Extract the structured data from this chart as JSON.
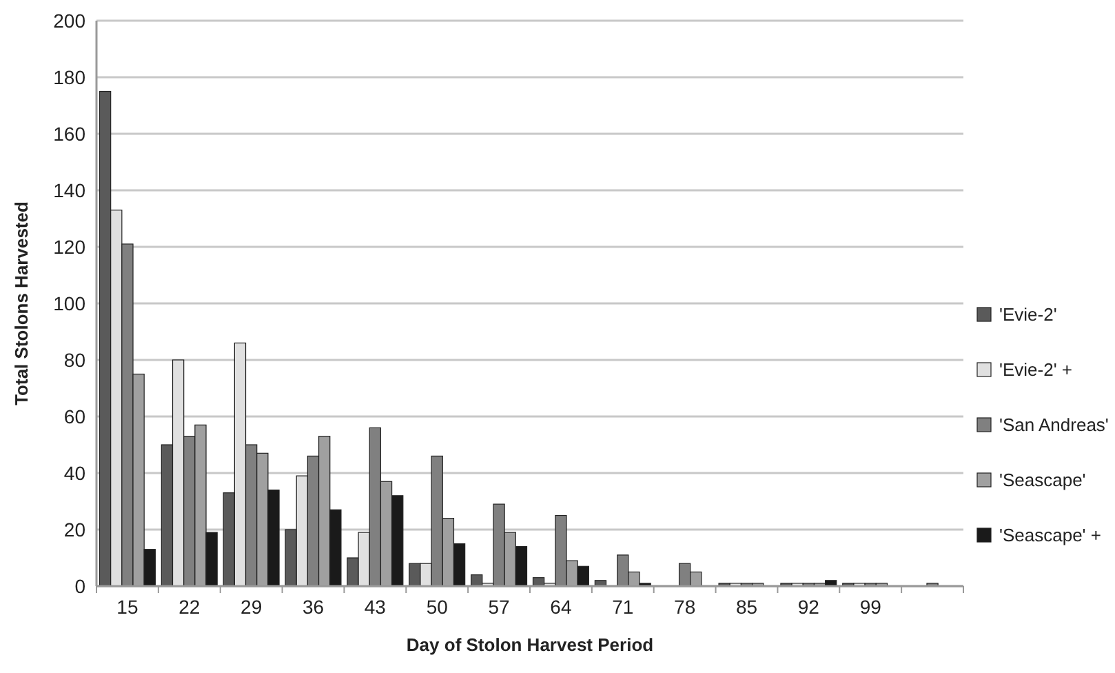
{
  "chart_data": {
    "type": "bar",
    "xlabel": "Day of Stolon Harvest Period",
    "ylabel": "Total Stolons Harvested",
    "categories": [
      "15",
      "22",
      "29",
      "36",
      "43",
      "50",
      "57",
      "64",
      "71",
      "78",
      "85",
      "92",
      "99",
      null
    ],
    "series": [
      {
        "name": "'Evie-2'",
        "color": "#5a5a5a",
        "values": [
          175,
          50,
          33,
          20,
          10,
          8,
          4,
          3,
          2,
          0,
          1,
          1,
          1,
          0
        ]
      },
      {
        "name": "'Evie-2' +",
        "color": "#e0e0e0",
        "values": [
          133,
          80,
          86,
          39,
          19,
          8,
          1,
          1,
          0,
          0,
          1,
          1,
          1,
          0
        ]
      },
      {
        "name": "'San Andreas'",
        "color": "#808080",
        "values": [
          121,
          53,
          50,
          46,
          56,
          46,
          29,
          25,
          11,
          8,
          1,
          1,
          1,
          1
        ]
      },
      {
        "name": "'Seascape'",
        "color": "#a0a0a0",
        "values": [
          75,
          57,
          47,
          53,
          37,
          24,
          19,
          9,
          5,
          5,
          1,
          1,
          1,
          0
        ]
      },
      {
        "name": "'Seascape' +",
        "color": "#1a1a1a",
        "values": [
          13,
          19,
          34,
          27,
          32,
          15,
          14,
          7,
          1,
          0,
          0,
          2,
          0,
          0
        ]
      }
    ],
    "ylim": [
      0,
      200
    ],
    "yticks": [
      0,
      20,
      40,
      60,
      80,
      100,
      120,
      140,
      160,
      180,
      200
    ],
    "grid": "y",
    "legend": "right"
  }
}
